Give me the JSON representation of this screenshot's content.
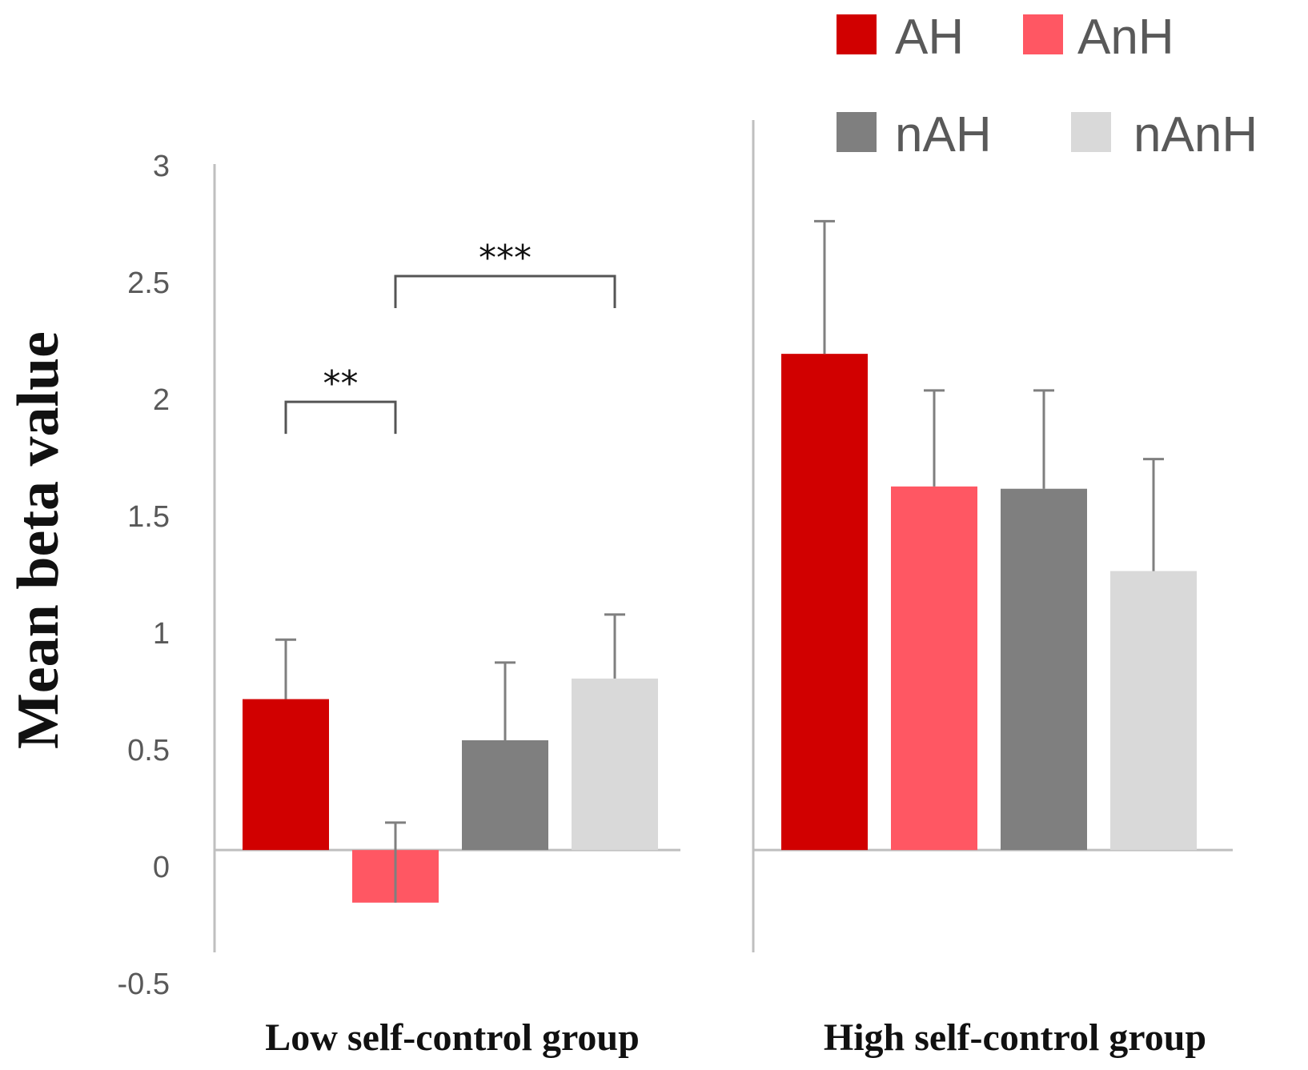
{
  "chart_data": {
    "type": "bar",
    "title": "",
    "ylabel": "Mean beta value",
    "xlabel": "",
    "ylim": [
      -0.5,
      3
    ],
    "yticks": [
      "3",
      "2.5",
      "2",
      "1.5",
      "1",
      "0.5",
      "0",
      "-0.5"
    ],
    "ytick_values": [
      3,
      2.5,
      2,
      1.5,
      1,
      0.5,
      0,
      -0.5
    ],
    "grid": false,
    "legend_position": "top-right",
    "groups": [
      "Low self-control group",
      "High self-control group"
    ],
    "series": [
      {
        "name": "AH",
        "color": "#d10000",
        "values": [
          0.66,
          2.17
        ],
        "errors": [
          0.26,
          0.58
        ]
      },
      {
        "name": "AnH",
        "color": "#ff5763",
        "values": [
          -0.23,
          1.59
        ],
        "errors": [
          0.35,
          0.42
        ]
      },
      {
        "name": "nAH",
        "color": "#7f7f7f",
        "values": [
          0.48,
          1.58
        ],
        "errors": [
          0.34,
          0.43
        ]
      },
      {
        "name": "nAnH",
        "color": "#d9d9d9",
        "values": [
          0.75,
          1.22
        ],
        "errors": [
          0.28,
          0.49
        ]
      }
    ],
    "annotations": [
      {
        "label": "**",
        "group": 0,
        "from_series": 0,
        "to_series": 1
      },
      {
        "label": "***",
        "group": 0,
        "from_series": 1,
        "to_series": 3
      }
    ]
  }
}
